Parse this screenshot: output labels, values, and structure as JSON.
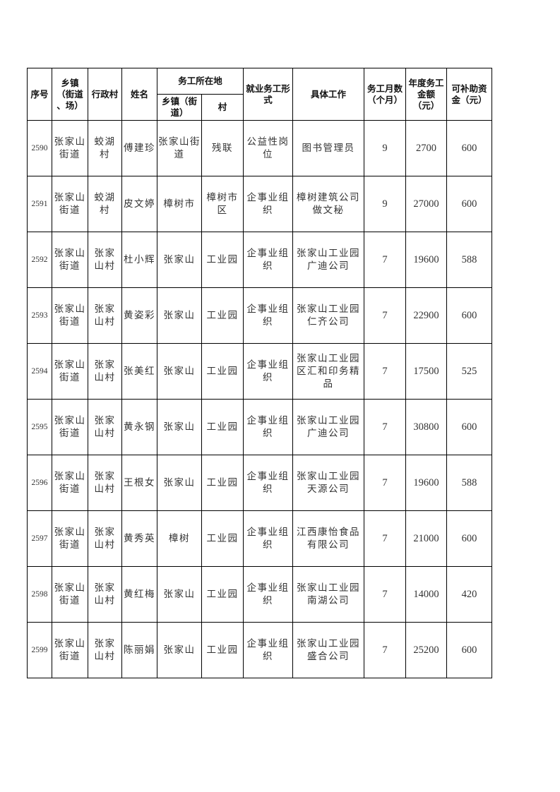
{
  "header": {
    "no": "序号",
    "town": "乡镇\n（街道\n、场）",
    "village": "行政村",
    "name": "姓名",
    "work_location": "务工所在地",
    "work_town": "乡镇（街\n道）",
    "work_village": "村",
    "employment_form": "就业务工形\n式",
    "job": "具体工作",
    "months": "务工月数\n（个月）",
    "income": "年度务工\n金额\n（元）",
    "subsidy": "可补助资\n金（元）"
  },
  "rows": [
    {
      "no": "2590",
      "town": "张家山\n街道",
      "village": "蛟湖\n村",
      "name": "傅建珍",
      "work_town": "张家山街\n道",
      "work_village": "残联",
      "form": "公益性岗\n位",
      "job": "图书管理员",
      "months": "9",
      "income": "2700",
      "subsidy": "600"
    },
    {
      "no": "2591",
      "town": "张家山\n街道",
      "village": "蛟湖\n村",
      "name": "皮文婷",
      "work_town": "樟树市",
      "work_village": "樟树市\n区",
      "form": "企事业组\n织",
      "job": "樟树建筑公司\n做文秘",
      "months": "9",
      "income": "27000",
      "subsidy": "600"
    },
    {
      "no": "2592",
      "town": "张家山\n街道",
      "village": "张家\n山村",
      "name": "杜小辉",
      "work_town": "张家山",
      "work_village": "工业园",
      "form": "企事业组\n织",
      "job": "张家山工业园\n广迪公司",
      "months": "7",
      "income": "19600",
      "subsidy": "588"
    },
    {
      "no": "2593",
      "town": "张家山\n街道",
      "village": "张家\n山村",
      "name": "黄姿彩",
      "work_town": "张家山",
      "work_village": "工业园",
      "form": "企事业组\n织",
      "job": "张家山工业园\n仁齐公司",
      "months": "7",
      "income": "22900",
      "subsidy": "600"
    },
    {
      "no": "2594",
      "town": "张家山\n街道",
      "village": "张家\n山村",
      "name": "张美红",
      "work_town": "张家山",
      "work_village": "工业园",
      "form": "企事业组\n织",
      "job": "张家山工业园\n区汇和印务精\n品",
      "months": "7",
      "income": "17500",
      "subsidy": "525"
    },
    {
      "no": "2595",
      "town": "张家山\n街道",
      "village": "张家\n山村",
      "name": "黄永钢",
      "work_town": "张家山",
      "work_village": "工业园",
      "form": "企事业组\n织",
      "job": "张家山工业园\n广迪公司",
      "months": "7",
      "income": "30800",
      "subsidy": "600"
    },
    {
      "no": "2596",
      "town": "张家山\n街道",
      "village": "张家\n山村",
      "name": "王根女",
      "work_town": "张家山",
      "work_village": "工业园",
      "form": "企事业组\n织",
      "job": "张家山工业园\n天源公司",
      "months": "7",
      "income": "19600",
      "subsidy": "588"
    },
    {
      "no": "2597",
      "town": "张家山\n街道",
      "village": "张家\n山村",
      "name": "黄秀英",
      "work_town": "樟树",
      "work_village": "工业园",
      "form": "企事业组\n织",
      "job": "江西康怡食品\n有限公司",
      "months": "7",
      "income": "21000",
      "subsidy": "600"
    },
    {
      "no": "2598",
      "town": "张家山\n街道",
      "village": "张家\n山村",
      "name": "黄红梅",
      "work_town": "张家山",
      "work_village": "工业园",
      "form": "企事业组\n织",
      "job": "张家山工业园\n南湖公司",
      "months": "7",
      "income": "14000",
      "subsidy": "420"
    },
    {
      "no": "2599",
      "town": "张家山\n街道",
      "village": "张家\n山村",
      "name": "陈丽娟",
      "work_town": "张家山",
      "work_village": "工业园",
      "form": "企事业组\n织",
      "job": "张家山工业园\n盛合公司",
      "months": "7",
      "income": "25200",
      "subsidy": "600"
    }
  ]
}
